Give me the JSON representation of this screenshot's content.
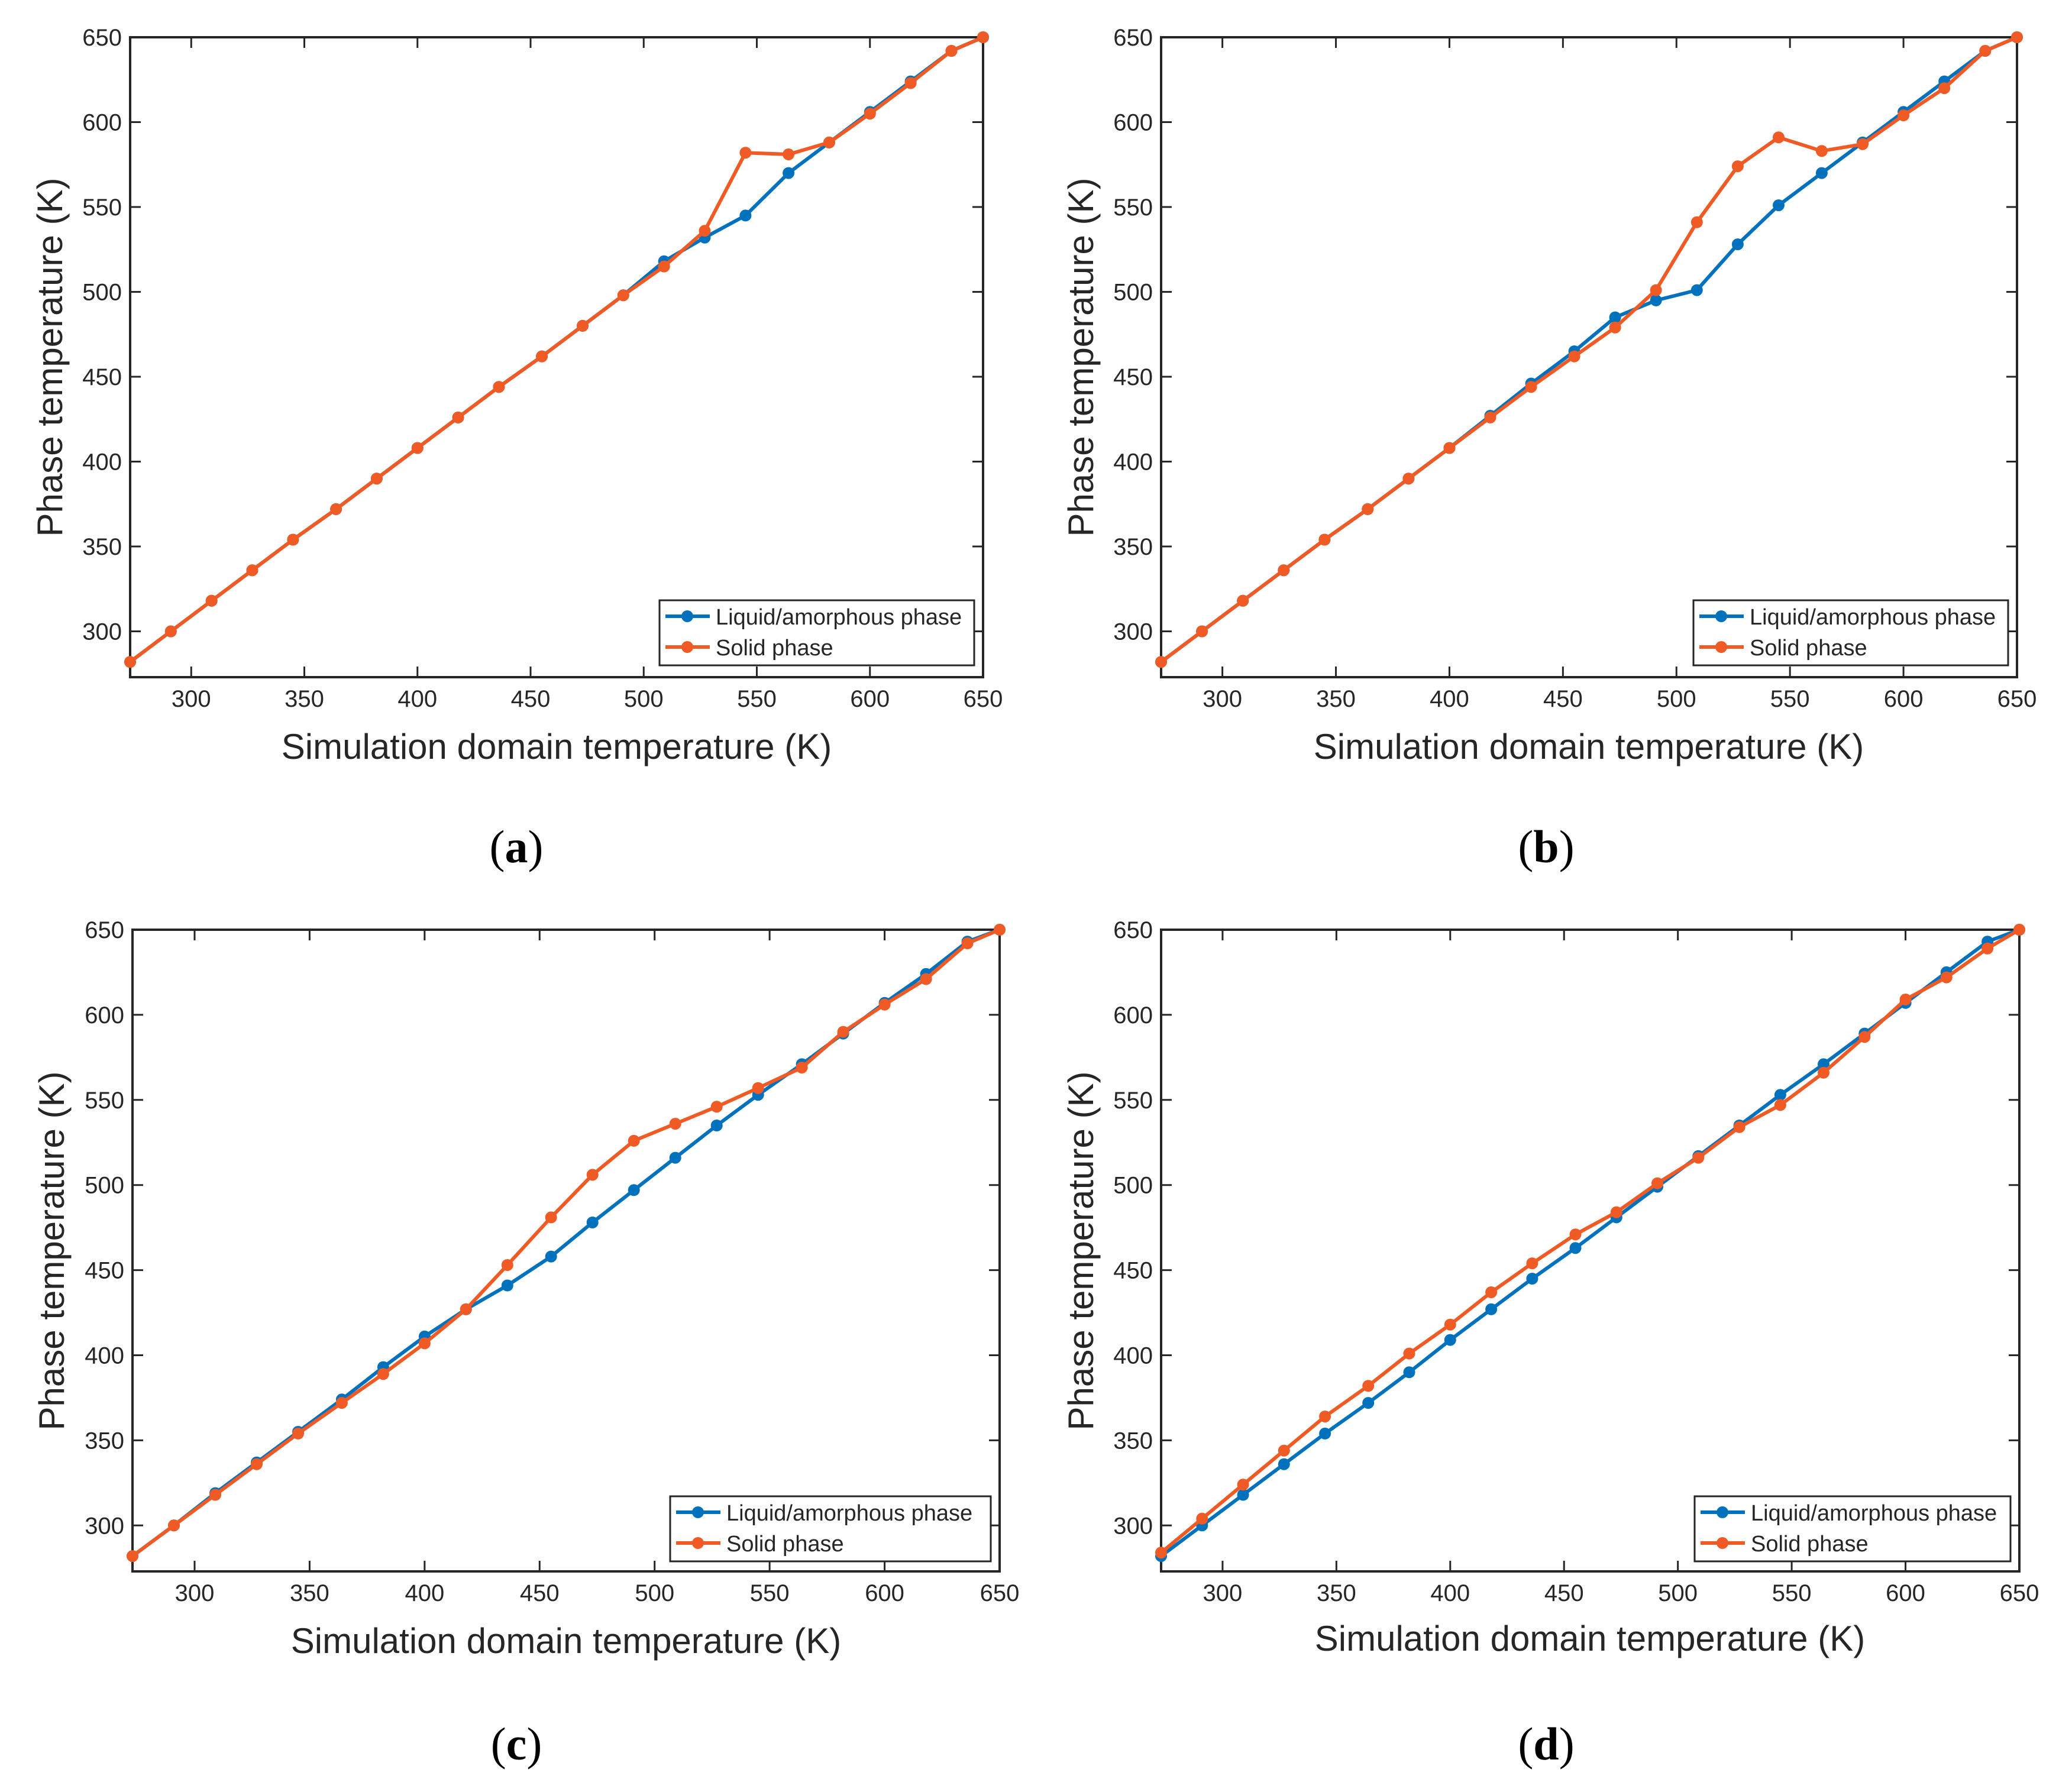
{
  "colors": {
    "liquid": "#0072BD",
    "solid": "#F05A24",
    "axis": "#262626",
    "background": "#ffffff"
  },
  "chart_data": [
    {
      "panel": "a",
      "type": "line",
      "xlabel": "Simulation domain temperature (K)",
      "ylabel": "Phase temperature (K)",
      "xlim": [
        273,
        650
      ],
      "ylim": [
        273,
        650
      ],
      "xticks": [
        300,
        350,
        400,
        450,
        500,
        550,
        600,
        650
      ],
      "yticks": [
        300,
        350,
        400,
        450,
        500,
        550,
        600,
        650
      ],
      "legend_position": "bottom-right",
      "x": [
        273,
        291,
        309,
        327,
        345,
        364,
        382,
        400,
        418,
        436,
        455,
        473,
        491,
        509,
        527,
        545,
        564,
        582,
        600,
        618,
        636,
        650
      ],
      "series": [
        {
          "name": "Liquid/amorphous phase",
          "color_key": "liquid",
          "values": [
            282,
            300,
            318,
            336,
            354,
            372,
            390,
            408,
            426,
            444,
            462,
            480,
            498,
            518,
            532,
            545,
            570,
            588,
            606,
            624,
            642,
            650
          ]
        },
        {
          "name": "Solid phase",
          "color_key": "solid",
          "values": [
            282,
            300,
            318,
            336,
            354,
            372,
            390,
            408,
            426,
            444,
            462,
            480,
            498,
            515,
            536,
            582,
            581,
            588,
            605,
            623,
            642,
            650
          ]
        }
      ]
    },
    {
      "panel": "b",
      "type": "line",
      "xlabel": "Simulation domain temperature (K)",
      "ylabel": "Phase temperature (K)",
      "xlim": [
        273,
        650
      ],
      "ylim": [
        273,
        650
      ],
      "xticks": [
        300,
        350,
        400,
        450,
        500,
        550,
        600,
        650
      ],
      "yticks": [
        300,
        350,
        400,
        450,
        500,
        550,
        600,
        650
      ],
      "legend_position": "bottom-right",
      "x": [
        273,
        291,
        309,
        327,
        345,
        364,
        382,
        400,
        418,
        436,
        455,
        473,
        491,
        509,
        527,
        545,
        564,
        582,
        600,
        618,
        636,
        650
      ],
      "series": [
        {
          "name": "Liquid/amorphous phase",
          "color_key": "liquid",
          "values": [
            282,
            300,
            318,
            336,
            354,
            372,
            390,
            408,
            427,
            446,
            465,
            485,
            495,
            501,
            528,
            551,
            570,
            588,
            606,
            624,
            642,
            650
          ]
        },
        {
          "name": "Solid phase",
          "color_key": "solid",
          "values": [
            282,
            300,
            318,
            336,
            354,
            372,
            390,
            408,
            426,
            444,
            462,
            479,
            501,
            541,
            574,
            591,
            583,
            587,
            604,
            620,
            642,
            650
          ]
        }
      ]
    },
    {
      "panel": "c",
      "type": "line",
      "xlabel": "Simulation domain temperature (K)",
      "ylabel": "Phase temperature (K)",
      "xlim": [
        273,
        650
      ],
      "ylim": [
        273,
        650
      ],
      "xticks": [
        300,
        350,
        400,
        450,
        500,
        550,
        600,
        650
      ],
      "yticks": [
        300,
        350,
        400,
        450,
        500,
        550,
        600,
        650
      ],
      "legend_position": "bottom-right",
      "x": [
        273,
        291,
        309,
        327,
        345,
        364,
        382,
        400,
        418,
        436,
        455,
        473,
        491,
        509,
        527,
        545,
        564,
        582,
        600,
        618,
        636,
        650
      ],
      "series": [
        {
          "name": "Liquid/amorphous phase",
          "color_key": "liquid",
          "values": [
            282,
            300,
            319,
            337,
            355,
            374,
            393,
            411,
            427,
            441,
            458,
            478,
            497,
            516,
            535,
            553,
            571,
            589,
            607,
            624,
            643,
            650
          ]
        },
        {
          "name": "Solid phase",
          "color_key": "solid",
          "values": [
            282,
            300,
            318,
            336,
            354,
            372,
            389,
            407,
            427,
            453,
            481,
            506,
            526,
            536,
            546,
            557,
            569,
            590,
            606,
            621,
            642,
            650
          ]
        }
      ]
    },
    {
      "panel": "d",
      "type": "line",
      "xlabel": "Simulation domain temperature (K)",
      "ylabel": "Phase temperature (K)",
      "xlim": [
        273,
        650
      ],
      "ylim": [
        273,
        650
      ],
      "xticks": [
        300,
        350,
        400,
        450,
        500,
        550,
        600,
        650
      ],
      "yticks": [
        300,
        350,
        400,
        450,
        500,
        550,
        600,
        650
      ],
      "legend_position": "bottom-right",
      "x": [
        273,
        291,
        309,
        327,
        345,
        364,
        382,
        400,
        418,
        436,
        455,
        473,
        491,
        509,
        527,
        545,
        564,
        582,
        600,
        618,
        636,
        650
      ],
      "series": [
        {
          "name": "Liquid/amorphous phase",
          "color_key": "liquid",
          "values": [
            282,
            300,
            318,
            336,
            354,
            372,
            390,
            409,
            427,
            445,
            463,
            481,
            499,
            517,
            535,
            553,
            571,
            589,
            607,
            625,
            643,
            650
          ]
        },
        {
          "name": "Solid phase",
          "color_key": "solid",
          "values": [
            284,
            304,
            324,
            344,
            364,
            382,
            401,
            418,
            437,
            454,
            471,
            484,
            501,
            516,
            534,
            547,
            566,
            587,
            609,
            622,
            639,
            650
          ]
        }
      ]
    }
  ]
}
